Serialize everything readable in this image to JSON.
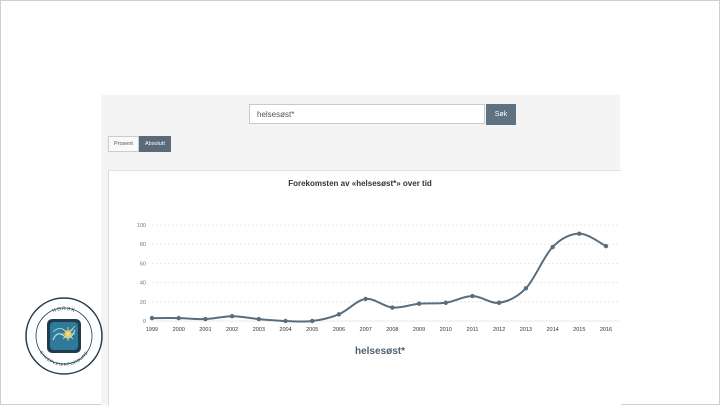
{
  "search": {
    "value": "helsesøst*",
    "button_label": "Søk"
  },
  "view_toggle": {
    "options": [
      "Prosent",
      "Absolutt"
    ],
    "active": "Absolutt"
  },
  "chart_data": {
    "type": "line",
    "title": "Forekomsten av «helsesøst*» over tid",
    "x": [
      1999,
      2000,
      2001,
      2002,
      2003,
      2004,
      2005,
      2006,
      2007,
      2008,
      2009,
      2010,
      2011,
      2012,
      2013,
      2014,
      2015,
      2016
    ],
    "series": [
      {
        "name": "helsesøst*",
        "values": [
          3,
          3,
          2,
          5,
          2,
          0,
          0,
          7,
          23,
          14,
          18,
          19,
          26,
          19,
          34,
          77,
          91,
          78
        ]
      }
    ],
    "yticks": [
      0,
      20,
      40,
      60,
      80,
      100
    ],
    "ylim": [
      0,
      100
    ],
    "grid": true,
    "legend": "bottom",
    "color": "#5a6d7c"
  },
  "logo": {
    "top_text": "NORSK",
    "bottom_text": "SYKEPLEIERFORBUND",
    "colors": {
      "ring": "#1c3d52",
      "inner": "#2f7a98",
      "accent": "#e8c34a"
    }
  }
}
